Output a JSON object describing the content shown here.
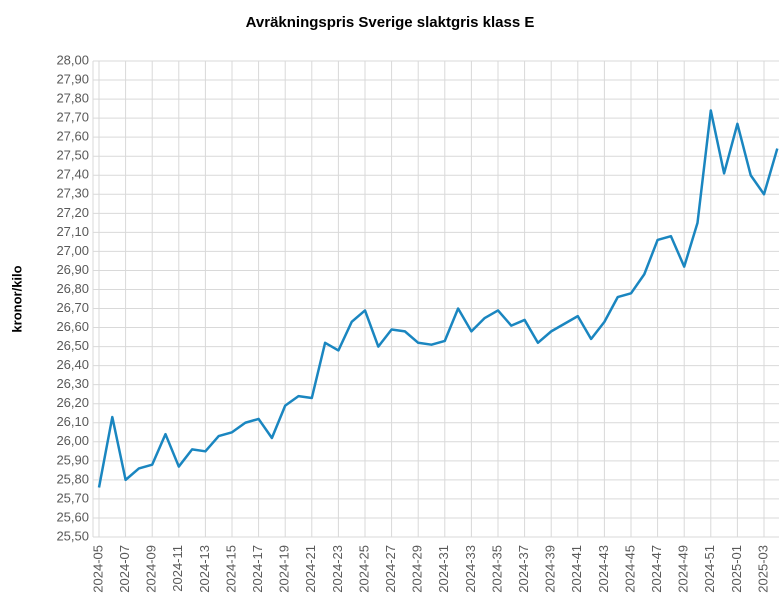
{
  "chart_data": {
    "type": "line",
    "title": "Avräkningspris Sverige slaktgris klass E",
    "y_label": "kronor/kilo",
    "categories": [
      "2024-05",
      null,
      "2024-07",
      null,
      "2024-09",
      null,
      "2024-11",
      null,
      "2024-13",
      null,
      "2024-15",
      null,
      "2024-17",
      null,
      "2024-19",
      null,
      "2024-21",
      null,
      "2024-23",
      null,
      "2024-25",
      null,
      "2024-27",
      null,
      "2024-29",
      null,
      "2024-31",
      null,
      "2024-33",
      null,
      "2024-35",
      null,
      "2024-37",
      null,
      "2024-39",
      null,
      "2024-41",
      null,
      "2024-43",
      null,
      "2024-45",
      null,
      "2024-47",
      null,
      "2024-49",
      null,
      "2024-51",
      null,
      "2025-01",
      null,
      "2025-03",
      null
    ],
    "series": [
      {
        "name": "Avräkningspris",
        "color": "#1a86c0",
        "values": [
          25.76,
          26.13,
          25.8,
          25.86,
          25.88,
          26.04,
          25.87,
          25.96,
          25.95,
          26.03,
          26.05,
          26.1,
          26.12,
          26.02,
          26.19,
          26.24,
          26.23,
          26.52,
          26.48,
          26.63,
          26.69,
          26.5,
          26.59,
          26.58,
          26.52,
          26.51,
          26.53,
          26.7,
          26.58,
          26.65,
          26.69,
          26.61,
          26.64,
          26.52,
          26.58,
          26.62,
          26.66,
          26.54,
          26.63,
          26.76,
          26.78,
          26.88,
          27.06,
          27.08,
          26.92,
          27.15,
          27.74,
          27.41,
          27.67,
          27.4,
          27.3,
          27.54
        ]
      }
    ],
    "ylim": [
      25.5,
      28.0
    ],
    "yticks": [
      {
        "value": 25.5,
        "label": "25,50"
      },
      {
        "value": 25.6,
        "label": "25,60"
      },
      {
        "value": 25.7,
        "label": "25,70"
      },
      {
        "value": 25.8,
        "label": "25,80"
      },
      {
        "value": 25.9,
        "label": "25,90"
      },
      {
        "value": 26.0,
        "label": "26,00"
      },
      {
        "value": 26.1,
        "label": "26,10"
      },
      {
        "value": 26.2,
        "label": "26,20"
      },
      {
        "value": 26.3,
        "label": "26,30"
      },
      {
        "value": 26.4,
        "label": "26,40"
      },
      {
        "value": 26.5,
        "label": "26,50"
      },
      {
        "value": 26.6,
        "label": "26,60"
      },
      {
        "value": 26.7,
        "label": "26,70"
      },
      {
        "value": 26.8,
        "label": "26,80"
      },
      {
        "value": 26.9,
        "label": "26,90"
      },
      {
        "value": 27.0,
        "label": "27,00"
      },
      {
        "value": 27.1,
        "label": "27,10"
      },
      {
        "value": 27.2,
        "label": "27,20"
      },
      {
        "value": 27.3,
        "label": "27,30"
      },
      {
        "value": 27.4,
        "label": "27,40"
      },
      {
        "value": 27.5,
        "label": "27,50"
      },
      {
        "value": 27.6,
        "label": "27,60"
      },
      {
        "value": 27.7,
        "label": "27,70"
      },
      {
        "value": 27.8,
        "label": "27,80"
      },
      {
        "value": 27.9,
        "label": "27,90"
      },
      {
        "value": 28.0,
        "label": "28,00"
      }
    ],
    "grid": true
  }
}
